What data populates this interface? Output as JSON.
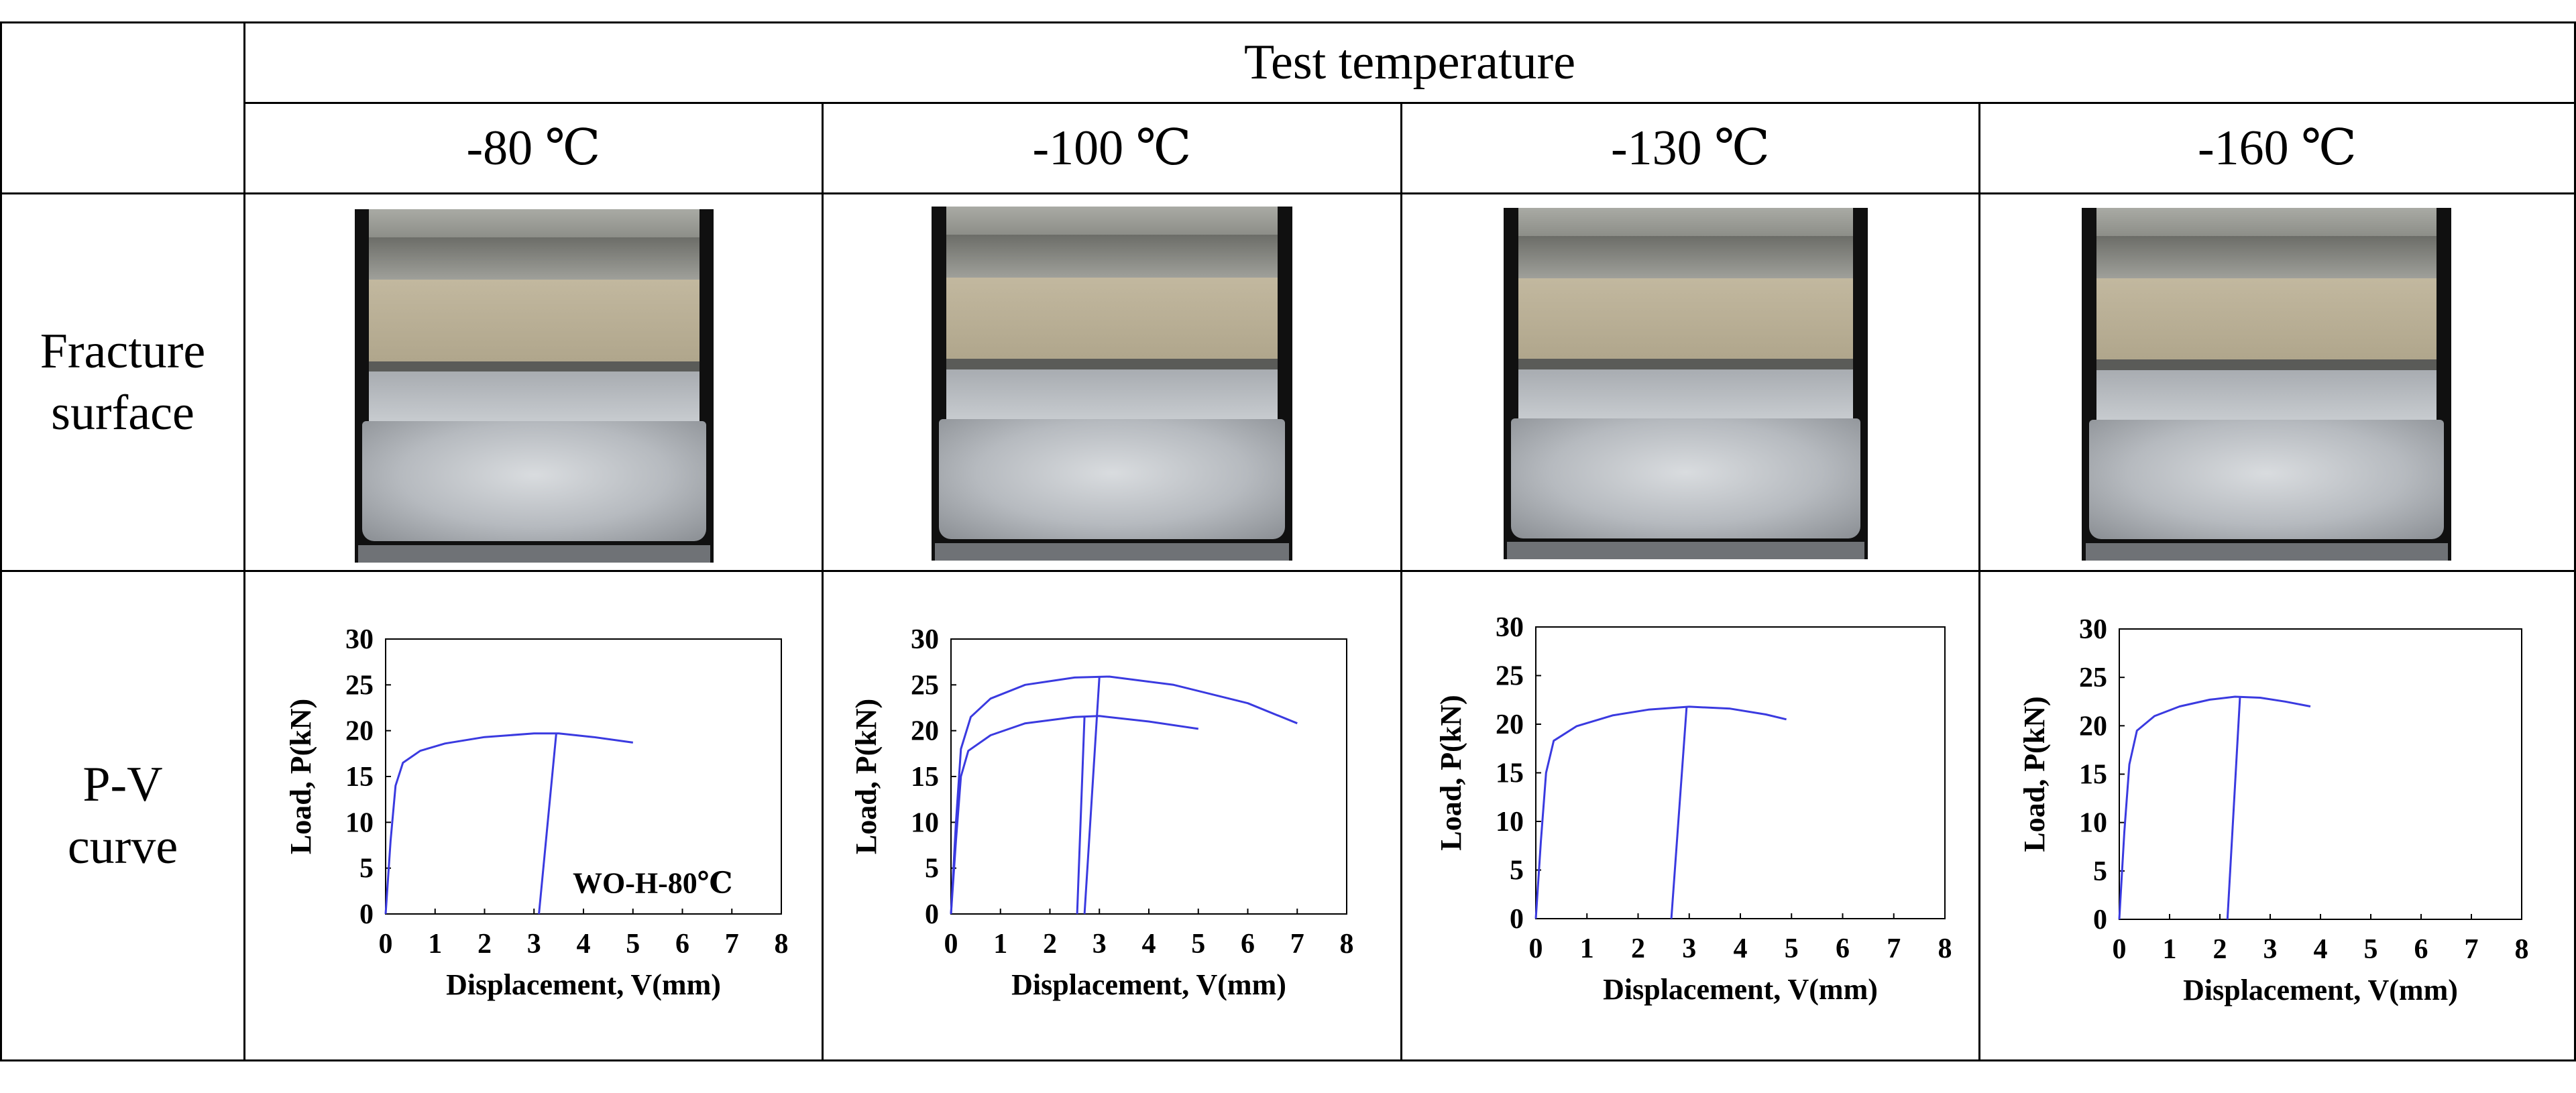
{
  "table": {
    "header": "Test temperature",
    "columns": [
      "-80 ℃",
      "-100 ℃",
      "-130 ℃",
      "-160 ℃"
    ],
    "rows": [
      "Fracture\nsurface",
      "P-V\ncurve"
    ]
  },
  "photos": [
    {
      "name": "fracture-surface--80"
    },
    {
      "name": "fracture-surface--100"
    },
    {
      "name": "fracture-surface--130"
    },
    {
      "name": "fracture-surface--160"
    }
  ],
  "chart_data": [
    {
      "type": "line",
      "xlabel": "Displacement, V(mm)",
      "ylabel": "Load, P(kN)",
      "xlim": [
        0,
        8
      ],
      "ylim": [
        0,
        30
      ],
      "xticks": [
        0,
        1,
        2,
        3,
        4,
        5,
        6,
        7,
        8
      ],
      "yticks": [
        0,
        5,
        10,
        15,
        20,
        25,
        30
      ],
      "annotation": "WO-H-80℃",
      "color": "#3a3ae0",
      "series": [
        {
          "points": [
            [
              0,
              0
            ],
            [
              0.1,
              8
            ],
            [
              0.2,
              14
            ],
            [
              0.35,
              16.5
            ],
            [
              0.7,
              17.8
            ],
            [
              1.2,
              18.6
            ],
            [
              2,
              19.3
            ],
            [
              3,
              19.7
            ],
            [
              3.5,
              19.7
            ],
            [
              4.2,
              19.3
            ],
            [
              5,
              18.7
            ]
          ]
        },
        {
          "points": [
            [
              3.1,
              0
            ],
            [
              3.45,
              19.7
            ]
          ]
        }
      ]
    },
    {
      "type": "line",
      "xlabel": "Displacement, V(mm)",
      "ylabel": "Load, P(kN)",
      "xlim": [
        0,
        8
      ],
      "ylim": [
        0,
        30
      ],
      "xticks": [
        0,
        1,
        2,
        3,
        4,
        5,
        6,
        7,
        8
      ],
      "yticks": [
        0,
        5,
        10,
        15,
        20,
        25,
        30
      ],
      "annotation": "",
      "color": "#3a3ae0",
      "series": [
        {
          "points": [
            [
              0,
              0
            ],
            [
              0.1,
              10
            ],
            [
              0.2,
              18
            ],
            [
              0.4,
              21.5
            ],
            [
              0.8,
              23.5
            ],
            [
              1.5,
              25
            ],
            [
              2.5,
              25.8
            ],
            [
              3.2,
              25.9
            ],
            [
              4.5,
              25
            ],
            [
              6,
              23
            ],
            [
              7,
              20.8
            ]
          ]
        },
        {
          "points": [
            [
              0,
              0
            ],
            [
              0.1,
              8
            ],
            [
              0.2,
              15
            ],
            [
              0.35,
              17.8
            ],
            [
              0.8,
              19.5
            ],
            [
              1.5,
              20.8
            ],
            [
              2.5,
              21.5
            ],
            [
              3,
              21.6
            ],
            [
              4,
              21
            ],
            [
              5,
              20.2
            ]
          ]
        },
        {
          "points": [
            [
              2.7,
              0
            ],
            [
              3.0,
              25.9
            ]
          ]
        },
        {
          "points": [
            [
              2.55,
              0
            ],
            [
              2.7,
              21.6
            ]
          ]
        }
      ]
    },
    {
      "type": "line",
      "xlabel": "Displacement, V(mm)",
      "ylabel": "Load, P(kN)",
      "xlim": [
        0,
        8
      ],
      "ylim": [
        0,
        30
      ],
      "xticks": [
        0,
        1,
        2,
        3,
        4,
        5,
        6,
        7,
        8
      ],
      "yticks": [
        0,
        5,
        10,
        15,
        20,
        25,
        30
      ],
      "annotation": "",
      "color": "#3a3ae0",
      "series": [
        {
          "points": [
            [
              0,
              0
            ],
            [
              0.1,
              8
            ],
            [
              0.2,
              15
            ],
            [
              0.35,
              18.3
            ],
            [
              0.8,
              19.8
            ],
            [
              1.5,
              20.9
            ],
            [
              2.2,
              21.5
            ],
            [
              3,
              21.8
            ],
            [
              3.8,
              21.6
            ],
            [
              4.5,
              21
            ],
            [
              4.9,
              20.5
            ]
          ]
        },
        {
          "points": [
            [
              2.65,
              0
            ],
            [
              2.95,
              21.8
            ]
          ]
        }
      ]
    },
    {
      "type": "line",
      "xlabel": "Displacement, V(mm)",
      "ylabel": "Load, P(kN)",
      "xlim": [
        0,
        8
      ],
      "ylim": [
        0,
        30
      ],
      "xticks": [
        0,
        1,
        2,
        3,
        4,
        5,
        6,
        7,
        8
      ],
      "yticks": [
        0,
        5,
        10,
        15,
        20,
        25,
        30
      ],
      "annotation": "",
      "color": "#3a3ae0",
      "series": [
        {
          "points": [
            [
              0,
              0
            ],
            [
              0.1,
              9
            ],
            [
              0.2,
              16
            ],
            [
              0.35,
              19.5
            ],
            [
              0.7,
              21
            ],
            [
              1.2,
              22
            ],
            [
              1.8,
              22.7
            ],
            [
              2.3,
              23
            ],
            [
              2.8,
              22.9
            ],
            [
              3.3,
              22.5
            ],
            [
              3.8,
              22
            ]
          ]
        },
        {
          "points": [
            [
              2.15,
              0
            ],
            [
              2.4,
              23
            ]
          ]
        }
      ]
    }
  ]
}
